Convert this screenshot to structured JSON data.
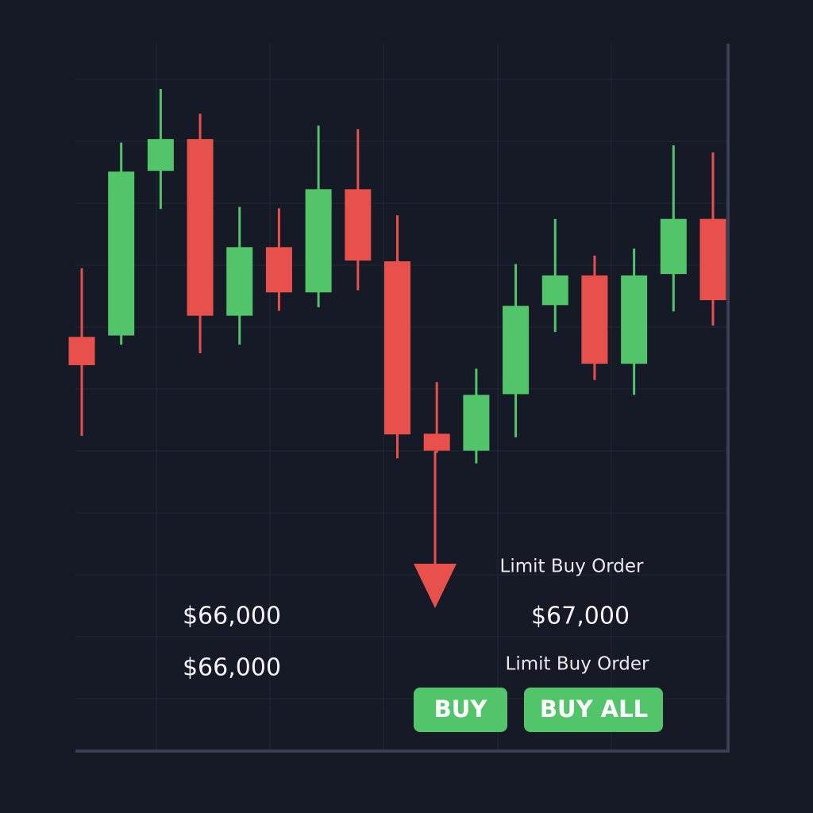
{
  "chart_data": {
    "type": "candlestick",
    "up_color": "#52c46a",
    "down_color": "#e8504c",
    "ylim": [
      0,
      100
    ],
    "open": [
      58.5,
      58.7,
      82.0,
      86.5,
      61.5,
      71.2,
      64.8,
      79.4,
      69.2,
      44.8,
      42.4,
      50.4,
      63.0,
      67.2,
      54.7,
      67.4,
      75.2
    ],
    "close": [
      54.5,
      81.9,
      86.5,
      61.5,
      71.2,
      64.8,
      79.4,
      69.3,
      44.7,
      42.4,
      50.3,
      62.9,
      67.2,
      54.7,
      67.2,
      75.2,
      63.7
    ],
    "high": [
      68.2,
      86.0,
      93.6,
      90.1,
      76.9,
      76.7,
      88.4,
      87.9,
      75.7,
      52.1,
      54.0,
      68.8,
      75.2,
      70.0,
      71.0,
      85.6,
      84.6
    ],
    "low": [
      44.5,
      57.4,
      76.6,
      56.2,
      57.4,
      62.2,
      62.7,
      65.1,
      41.3,
      42.1,
      40.6,
      44.3,
      59.2,
      52.4,
      50.3,
      62.1,
      60.1
    ],
    "annotations": {
      "upper_label": "Limit Buy Order",
      "upper_left_price": "$66,000",
      "upper_right_price": "$67,000",
      "lower_left_price": "$66,000",
      "lower_label": "Limit Buy Order"
    }
  },
  "buttons": [
    "BUY",
    "BUY ALL"
  ]
}
